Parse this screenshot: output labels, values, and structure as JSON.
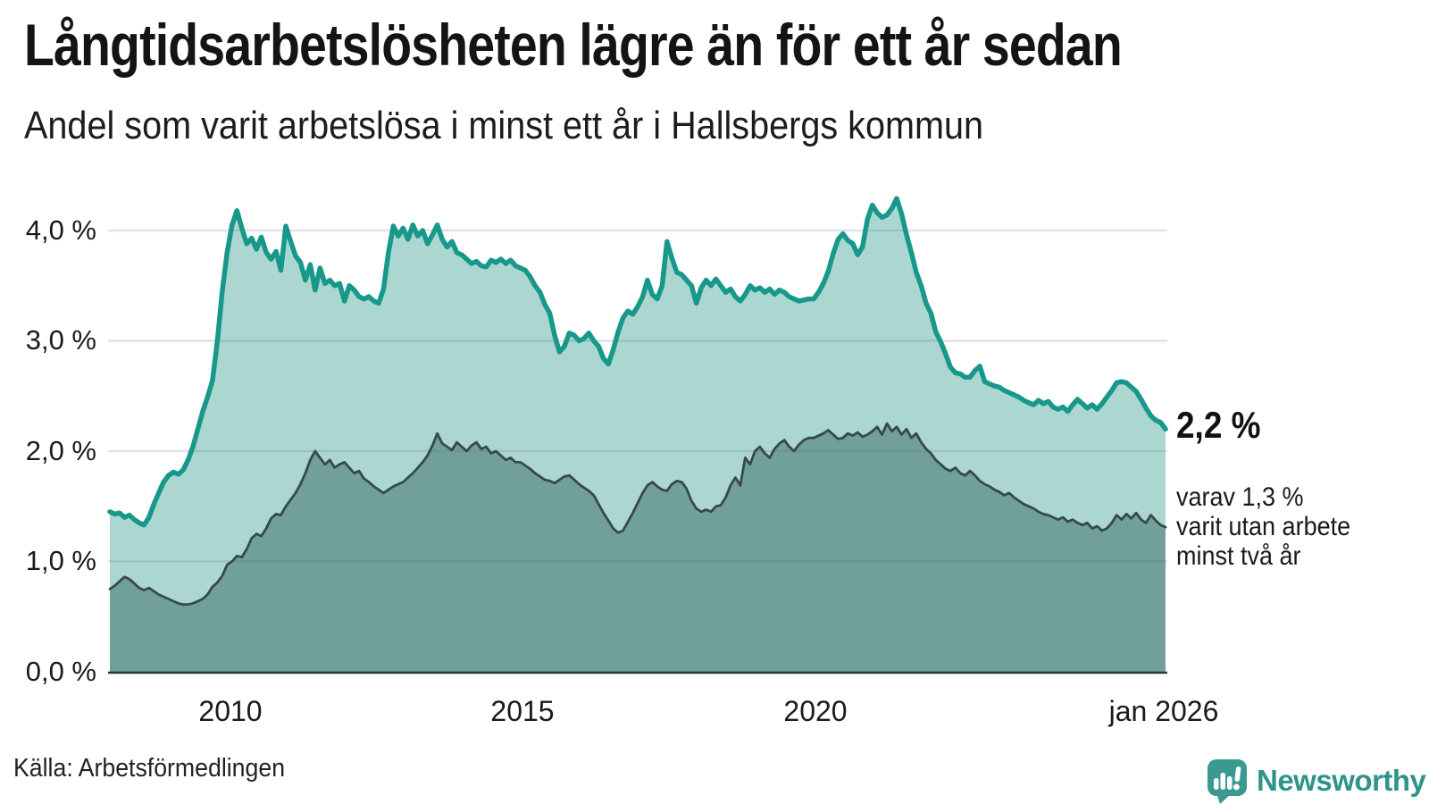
{
  "header": {
    "title": "Långtidsarbetslösheten lägre än för ett år sedan",
    "subtitle": "Andel som varit arbetslösa i minst ett år i Hallsbergs kommun"
  },
  "axes": {
    "y_ticks": [
      {
        "label": "4,0 %",
        "value": 4.0
      },
      {
        "label": "3,0 %",
        "value": 3.0
      },
      {
        "label": "2,0 %",
        "value": 2.0
      },
      {
        "label": "1,0 %",
        "value": 1.0
      },
      {
        "label": "0,0 %",
        "value": 0.0
      }
    ],
    "x_ticks": [
      {
        "label": "2010"
      },
      {
        "label": "2015"
      },
      {
        "label": "2020"
      },
      {
        "label": "jan 2026"
      }
    ]
  },
  "annotations": {
    "end_value": "2,2 %",
    "subset_line1": "varav 1,3 %",
    "subset_line2": "varit utan arbete",
    "subset_line3": "minst två år"
  },
  "footer": {
    "source": "Källa: Arbetsförmedlingen",
    "logo_text": "Newsworthy"
  },
  "colors": {
    "line_total": "#17988a",
    "area_total": "#abd7d0",
    "line_subset": "#36494b",
    "area_subset": "#71a09b",
    "gridline": "rgba(84,90,110,0.17)",
    "axis_line": "#2b3a3a",
    "logo_teal": "#2e948b",
    "logo_icon": "#3a9a90"
  },
  "chart_data": {
    "type": "area",
    "title": "Långtidsarbetslösheten lägre än för ett år sedan",
    "subtitle": "Andel som varit arbetslösa i minst ett år i Hallsbergs kommun",
    "unit": "%",
    "frequency": "monthly",
    "x_start": "jan 2008",
    "x_end": "jan 2026",
    "ylim": [
      0,
      4.35
    ],
    "y_gridlines": [
      1.0,
      2.0,
      3.0,
      4.0
    ],
    "x_tick_years": [
      2010,
      2015,
      2020,
      2026
    ],
    "legend_position": "right-annotations",
    "series": [
      {
        "name": "Andel arbetslösa minst ett år",
        "end_value": 2.2,
        "values": [
          1.45,
          1.43,
          1.44,
          1.4,
          1.42,
          1.38,
          1.35,
          1.33,
          1.4,
          1.52,
          1.62,
          1.72,
          1.78,
          1.81,
          1.79,
          1.83,
          1.92,
          2.04,
          2.2,
          2.36,
          2.49,
          2.64,
          3.0,
          3.45,
          3.8,
          4.05,
          4.18,
          4.02,
          3.88,
          3.93,
          3.83,
          3.94,
          3.8,
          3.74,
          3.81,
          3.64,
          4.04,
          3.9,
          3.77,
          3.71,
          3.55,
          3.69,
          3.46,
          3.66,
          3.52,
          3.55,
          3.5,
          3.52,
          3.36,
          3.5,
          3.46,
          3.4,
          3.38,
          3.4,
          3.36,
          3.34,
          3.47,
          3.8,
          4.04,
          3.95,
          4.02,
          3.92,
          4.05,
          3.95,
          4.0,
          3.88,
          3.96,
          4.05,
          3.92,
          3.85,
          3.9,
          3.8,
          3.78,
          3.74,
          3.7,
          3.72,
          3.68,
          3.67,
          3.73,
          3.71,
          3.74,
          3.7,
          3.73,
          3.68,
          3.66,
          3.64,
          3.58,
          3.5,
          3.44,
          3.33,
          3.25,
          3.05,
          2.9,
          2.95,
          3.07,
          3.05,
          3.0,
          3.02,
          3.07,
          3.0,
          2.95,
          2.84,
          2.79,
          2.92,
          3.08,
          3.21,
          3.27,
          3.24,
          3.31,
          3.4,
          3.55,
          3.42,
          3.38,
          3.5,
          3.9,
          3.75,
          3.62,
          3.6,
          3.55,
          3.5,
          3.34,
          3.48,
          3.55,
          3.5,
          3.56,
          3.5,
          3.44,
          3.47,
          3.4,
          3.36,
          3.42,
          3.5,
          3.46,
          3.48,
          3.44,
          3.47,
          3.42,
          3.46,
          3.44,
          3.4,
          3.38,
          3.36,
          3.37,
          3.38,
          3.38,
          3.44,
          3.52,
          3.63,
          3.79,
          3.92,
          3.97,
          3.91,
          3.88,
          3.78,
          3.85,
          4.1,
          4.23,
          4.16,
          4.12,
          4.14,
          4.2,
          4.29,
          4.15,
          3.96,
          3.8,
          3.62,
          3.5,
          3.34,
          3.25,
          3.08,
          2.99,
          2.88,
          2.76,
          2.71,
          2.7,
          2.67,
          2.67,
          2.73,
          2.77,
          2.63,
          2.61,
          2.59,
          2.58,
          2.55,
          2.53,
          2.51,
          2.49,
          2.46,
          2.44,
          2.42,
          2.46,
          2.43,
          2.45,
          2.4,
          2.38,
          2.4,
          2.36,
          2.42,
          2.47,
          2.43,
          2.39,
          2.42,
          2.38,
          2.43,
          2.49,
          2.55,
          2.62,
          2.63,
          2.62,
          2.58,
          2.54,
          2.47,
          2.39,
          2.32,
          2.28,
          2.26,
          2.2
        ]
      },
      {
        "name": "varav utan arbete minst två år",
        "end_value": 1.3,
        "values": [
          0.75,
          0.78,
          0.82,
          0.86,
          0.84,
          0.8,
          0.76,
          0.74,
          0.76,
          0.73,
          0.7,
          0.68,
          0.66,
          0.64,
          0.62,
          0.61,
          0.61,
          0.62,
          0.64,
          0.66,
          0.7,
          0.77,
          0.81,
          0.87,
          0.97,
          1.0,
          1.05,
          1.04,
          1.11,
          1.21,
          1.25,
          1.23,
          1.3,
          1.39,
          1.43,
          1.42,
          1.5,
          1.56,
          1.62,
          1.7,
          1.8,
          1.92,
          2.0,
          1.94,
          1.88,
          1.92,
          1.85,
          1.88,
          1.9,
          1.85,
          1.8,
          1.82,
          1.75,
          1.72,
          1.68,
          1.65,
          1.62,
          1.65,
          1.68,
          1.7,
          1.72,
          1.76,
          1.8,
          1.85,
          1.9,
          1.96,
          2.05,
          2.16,
          2.07,
          2.04,
          2.01,
          2.08,
          2.04,
          2.0,
          2.05,
          2.08,
          2.02,
          2.04,
          1.98,
          2.0,
          1.96,
          1.92,
          1.94,
          1.9,
          1.9,
          1.87,
          1.84,
          1.8,
          1.77,
          1.74,
          1.73,
          1.71,
          1.74,
          1.77,
          1.78,
          1.74,
          1.7,
          1.67,
          1.64,
          1.6,
          1.52,
          1.44,
          1.37,
          1.3,
          1.26,
          1.28,
          1.36,
          1.44,
          1.53,
          1.62,
          1.69,
          1.72,
          1.68,
          1.65,
          1.64,
          1.7,
          1.73,
          1.72,
          1.66,
          1.55,
          1.48,
          1.45,
          1.47,
          1.45,
          1.5,
          1.51,
          1.58,
          1.69,
          1.76,
          1.69,
          1.94,
          1.88,
          2.0,
          2.04,
          1.98,
          1.94,
          2.02,
          2.07,
          2.1,
          2.04,
          2.0,
          2.06,
          2.1,
          2.12,
          2.12,
          2.14,
          2.16,
          2.19,
          2.15,
          2.11,
          2.12,
          2.16,
          2.14,
          2.17,
          2.13,
          2.15,
          2.18,
          2.22,
          2.15,
          2.25,
          2.18,
          2.22,
          2.15,
          2.2,
          2.12,
          2.16,
          2.08,
          2.02,
          1.98,
          1.92,
          1.88,
          1.84,
          1.82,
          1.85,
          1.8,
          1.78,
          1.82,
          1.78,
          1.73,
          1.7,
          1.68,
          1.65,
          1.63,
          1.6,
          1.62,
          1.58,
          1.55,
          1.52,
          1.5,
          1.48,
          1.45,
          1.43,
          1.42,
          1.4,
          1.38,
          1.4,
          1.36,
          1.38,
          1.35,
          1.33,
          1.35,
          1.3,
          1.32,
          1.28,
          1.3,
          1.35,
          1.42,
          1.38,
          1.43,
          1.39,
          1.44,
          1.38,
          1.35,
          1.42,
          1.37,
          1.33,
          1.31
        ]
      }
    ]
  }
}
